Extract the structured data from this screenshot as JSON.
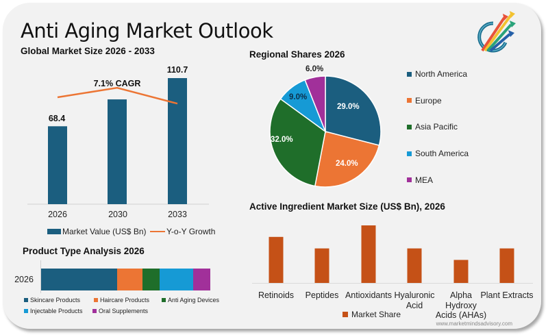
{
  "header": {
    "title": "Anti Aging Market Outlook",
    "logo_icon": "arrows-growth-logo-icon"
  },
  "watermark": "www.marketmindsadvisory.com",
  "colors": {
    "navy": "#1b5e7f",
    "orange": "#ec7534",
    "green": "#1f6e2a",
    "sky": "#169ad5",
    "purple": "#a1309a",
    "rust": "#c55117",
    "background": "#f2f2f2"
  },
  "chart_data": [
    {
      "id": "market_size",
      "type": "bar",
      "title": "Global Market Size 2026 - 2033",
      "categories": [
        "2026",
        "2030",
        "2033"
      ],
      "series": [
        {
          "name": "Market Value (US$ Bn)",
          "values": [
            68.4,
            92.0,
            110.7
          ],
          "data_labels": [
            "68.4",
            "",
            "110.7"
          ],
          "color": "#1b5e7f"
        },
        {
          "name": "Y-o-Y Growth",
          "type": "line",
          "values": [
            7.0,
            7.3,
            6.8
          ],
          "color": "#ec7534"
        }
      ],
      "annotation": "7.1% CAGR",
      "ylim": [
        0,
        120
      ],
      "grid": false,
      "legend": "bottom"
    },
    {
      "id": "regional_shares",
      "type": "pie",
      "title": "Regional Shares 2026",
      "labels": [
        "North America",
        "Europe",
        "Asia Pacific",
        "South America",
        "MEA"
      ],
      "values": [
        29.0,
        24.0,
        32.0,
        9.0,
        6.0
      ],
      "data_labels": [
        "29.0%",
        "24.0%",
        "32.0%",
        "9.0%",
        "6.0%"
      ],
      "colors": [
        "#1b5e7f",
        "#ec7534",
        "#1f6e2a",
        "#169ad5",
        "#a1309a"
      ],
      "legend": "right"
    },
    {
      "id": "product_type",
      "type": "bar",
      "orientation": "horizontal-stacked",
      "title": "Product Type Analysis 2026",
      "categories": [
        "2026"
      ],
      "series": [
        {
          "name": "Skincare Products",
          "values": [
            45
          ],
          "color": "#1b5e7f"
        },
        {
          "name": "Haircare Products",
          "values": [
            15
          ],
          "color": "#ec7534"
        },
        {
          "name": "Anti Aging Devices",
          "values": [
            10
          ],
          "color": "#1f6e2a"
        },
        {
          "name": "Injectable Products",
          "values": [
            20
          ],
          "color": "#169ad5"
        },
        {
          "name": "Oral Supplements",
          "values": [
            10
          ],
          "color": "#a1309a"
        }
      ],
      "legend": "bottom"
    },
    {
      "id": "active_ingredient",
      "type": "bar",
      "title": "Active Ingredient Market Size (US$ Bn), 2026",
      "categories": [
        "Retinoids",
        "Peptides",
        "Antioxidants",
        "Hyaluronic Acid",
        "Alpha Hydroxy Acids (AHAs)",
        "Plant Extracts"
      ],
      "category_lines": [
        [
          "Retinoids"
        ],
        [
          "Peptides"
        ],
        [
          "Antioxidants"
        ],
        [
          "Hyaluronic",
          "Acid"
        ],
        [
          "Alpha",
          "Hydroxy",
          "Acids (AHAs)"
        ],
        [
          "Plant Extracts"
        ]
      ],
      "series": [
        {
          "name": "Market Share",
          "values": [
            4,
            3,
            5,
            3,
            2,
            3
          ],
          "color": "#c55117"
        }
      ],
      "ylim": [
        0,
        5
      ],
      "grid": false,
      "legend": "bottom"
    }
  ]
}
